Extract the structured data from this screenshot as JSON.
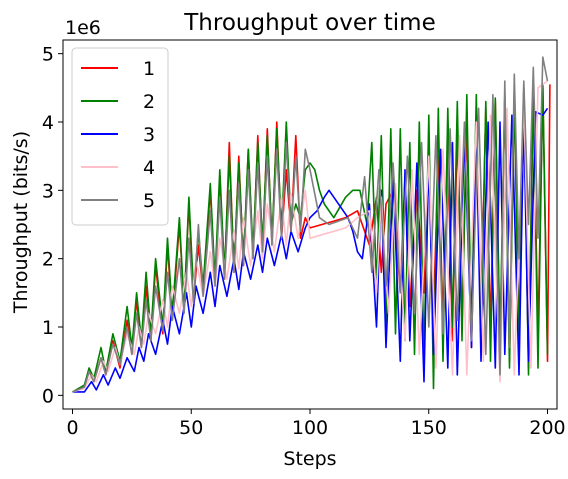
{
  "chart_data": {
    "type": "line",
    "title": "Throughput over time",
    "xlabel": "Steps",
    "ylabel": "Throughput (bits/s)",
    "y_offset_label": "1e6",
    "xlim": [
      -4,
      204
    ],
    "ylim": [
      -0.2,
      5.2
    ],
    "xticks": [
      0,
      50,
      100,
      150,
      200
    ],
    "yticks": [
      0,
      1,
      2,
      3,
      4,
      5
    ],
    "grid": false,
    "legend_position": "upper-left",
    "series": [
      {
        "name": "1",
        "color": "#ff0000",
        "x": [
          0,
          5,
          7,
          9,
          12,
          14,
          17,
          20,
          23,
          25,
          27,
          29,
          31,
          33,
          35,
          38,
          40,
          42,
          45,
          47,
          49,
          51,
          53,
          55,
          58,
          60,
          62,
          64,
          66,
          68,
          70,
          72,
          74,
          76,
          78,
          80,
          82,
          84,
          86,
          88,
          90,
          92,
          94,
          96,
          98,
          100,
          105,
          110,
          115,
          120,
          125,
          128,
          130,
          132,
          135,
          138,
          140,
          142,
          145,
          148,
          150,
          152,
          154,
          156,
          158,
          160,
          162,
          164,
          166,
          168,
          170,
          172,
          174,
          176,
          178,
          180,
          182,
          184,
          186,
          188,
          190,
          192,
          194,
          196,
          198,
          200,
          201
        ],
        "y": [
          0.05,
          0.12,
          0.35,
          0.2,
          0.55,
          0.3,
          0.8,
          0.4,
          1.1,
          0.6,
          1.4,
          0.7,
          1.6,
          0.8,
          1.9,
          0.9,
          2.2,
          1.1,
          2.5,
          1.3,
          2.8,
          1.4,
          2.2,
          1.5,
          3.0,
          1.6,
          3.2,
          1.7,
          3.7,
          1.8,
          3.5,
          1.9,
          3.6,
          2.0,
          3.8,
          2.1,
          3.9,
          2.2,
          4.0,
          2.3,
          3.3,
          2.4,
          3.8,
          2.3,
          2.6,
          2.45,
          2.5,
          2.55,
          2.6,
          2.7,
          2.2,
          2.9,
          1.8,
          2.8,
          3.0,
          1.5,
          3.2,
          1.3,
          3.0,
          1.5,
          3.4,
          1.2,
          3.5,
          1.1,
          3.6,
          0.8,
          3.9,
          1.0,
          4.0,
          0.7,
          4.1,
          1.2,
          4.2,
          0.9,
          4.3,
          0.6,
          4.35,
          0.5,
          4.4,
          0.8,
          4.45,
          0.4,
          4.4,
          0.9,
          4.5,
          0.5,
          4.55
        ]
      },
      {
        "name": "2",
        "color": "#008000",
        "x": [
          0,
          5,
          7,
          9,
          12,
          14,
          17,
          20,
          23,
          25,
          27,
          29,
          31,
          33,
          35,
          38,
          40,
          42,
          45,
          47,
          49,
          51,
          53,
          55,
          58,
          60,
          62,
          64,
          66,
          68,
          70,
          72,
          74,
          76,
          78,
          80,
          82,
          84,
          86,
          88,
          90,
          92,
          94,
          96,
          98,
          100,
          102,
          104,
          106,
          110,
          115,
          118,
          121,
          124,
          126,
          128,
          130,
          132,
          134,
          136,
          138,
          140,
          142,
          144,
          146,
          148,
          150,
          152,
          154,
          156,
          158,
          160,
          162,
          164,
          166,
          168,
          170,
          172,
          174,
          176,
          178,
          180,
          182,
          184,
          186,
          188,
          190,
          192,
          194,
          196,
          198,
          200
        ],
        "y": [
          0.05,
          0.15,
          0.4,
          0.25,
          0.7,
          0.35,
          0.9,
          0.5,
          1.3,
          0.7,
          1.5,
          0.8,
          1.8,
          0.9,
          2.0,
          1.0,
          2.3,
          1.2,
          2.6,
          1.3,
          2.9,
          1.5,
          2.4,
          1.6,
          3.1,
          1.7,
          3.3,
          1.8,
          3.5,
          1.9,
          3.4,
          2.0,
          3.6,
          2.1,
          3.7,
          2.2,
          3.8,
          2.3,
          3.9,
          2.4,
          4.0,
          2.5,
          2.8,
          2.6,
          3.3,
          3.4,
          3.3,
          3.0,
          2.8,
          2.6,
          2.9,
          3.0,
          3.0,
          2.5,
          3.7,
          1.6,
          3.8,
          1.0,
          3.9,
          0.9,
          3.9,
          0.8,
          3.7,
          0.6,
          4.0,
          0.5,
          4.1,
          0.1,
          4.2,
          0.5,
          4.2,
          1.0,
          4.3,
          0.8,
          4.4,
          0.9,
          4.4,
          0.7,
          4.3,
          0.5,
          4.35,
          0.8,
          4.4,
          0.4,
          4.45,
          0.6,
          4.5,
          0.3,
          4.5,
          0.4,
          4.55,
          0.6
        ]
      },
      {
        "name": "3",
        "color": "#0000ff",
        "x": [
          0,
          5,
          8,
          10,
          13,
          15,
          18,
          20,
          23,
          26,
          28,
          30,
          32,
          35,
          38,
          40,
          42,
          45,
          48,
          50,
          52,
          55,
          58,
          60,
          62,
          65,
          68,
          70,
          72,
          75,
          78,
          80,
          82,
          85,
          88,
          90,
          92,
          95,
          98,
          100,
          103,
          106,
          108,
          110,
          113,
          116,
          118,
          120,
          122,
          125,
          128,
          130,
          132,
          135,
          138,
          140,
          142,
          145,
          148,
          150,
          152,
          155,
          158,
          160,
          162,
          165,
          168,
          170,
          172,
          175,
          178,
          180,
          182,
          185,
          188,
          190,
          192,
          195,
          198,
          200
        ],
        "y": [
          0.05,
          0.05,
          0.2,
          0.08,
          0.3,
          0.15,
          0.4,
          0.25,
          0.55,
          0.35,
          0.7,
          0.5,
          0.9,
          0.6,
          1.1,
          0.75,
          1.3,
          0.9,
          1.5,
          1.0,
          1.6,
          1.2,
          1.8,
          1.3,
          1.9,
          1.45,
          2.0,
          1.55,
          2.1,
          1.7,
          2.2,
          1.8,
          2.3,
          1.9,
          2.35,
          2.0,
          2.4,
          2.1,
          2.45,
          2.6,
          2.7,
          2.9,
          3.0,
          2.9,
          2.75,
          2.6,
          2.4,
          2.1,
          2.0,
          2.8,
          1.0,
          3.0,
          0.7,
          3.2,
          0.5,
          3.3,
          0.8,
          3.4,
          0.2,
          3.5,
          0.6,
          3.6,
          0.4,
          3.7,
          0.3,
          3.8,
          0.7,
          3.9,
          0.5,
          4.0,
          0.4,
          4.0,
          0.6,
          4.1,
          0.3,
          4.1,
          0.5,
          4.15,
          4.1,
          4.2
        ]
      },
      {
        "name": "4",
        "color": "#ffc0cb",
        "x": [
          0,
          5,
          8,
          10,
          13,
          15,
          18,
          20,
          23,
          26,
          28,
          30,
          32,
          35,
          38,
          40,
          42,
          45,
          48,
          50,
          52,
          55,
          58,
          60,
          62,
          65,
          68,
          70,
          72,
          75,
          78,
          80,
          82,
          85,
          88,
          90,
          92,
          95,
          98,
          100,
          105,
          110,
          115,
          120,
          125,
          128,
          130,
          133,
          136,
          140,
          143,
          146,
          150,
          153,
          156,
          160,
          163,
          166,
          170,
          173,
          176,
          180,
          183,
          186,
          190,
          193,
          196,
          200
        ],
        "y": [
          0.05,
          0.1,
          0.3,
          0.2,
          0.5,
          0.35,
          0.7,
          0.45,
          0.9,
          0.6,
          1.0,
          0.75,
          1.2,
          0.9,
          1.4,
          1.0,
          1.6,
          1.2,
          1.8,
          1.3,
          2.0,
          1.45,
          2.1,
          1.6,
          2.3,
          1.7,
          2.4,
          1.85,
          2.6,
          1.9,
          2.7,
          2.0,
          2.8,
          2.1,
          2.9,
          2.2,
          2.95,
          2.3,
          3.0,
          2.3,
          2.35,
          2.4,
          2.45,
          2.6,
          2.7,
          1.5,
          2.9,
          1.2,
          3.1,
          0.8,
          3.3,
          0.6,
          3.5,
          0.4,
          3.6,
          0.3,
          3.8,
          0.3,
          4.0,
          0.5,
          4.1,
          0.2,
          4.2,
          0.3,
          4.3,
          0.4,
          4.5,
          4.6
        ]
      },
      {
        "name": "5",
        "color": "#808080",
        "x": [
          0,
          5,
          7,
          9,
          12,
          14,
          17,
          20,
          23,
          25,
          27,
          29,
          31,
          33,
          35,
          38,
          40,
          42,
          45,
          47,
          49,
          51,
          53,
          55,
          58,
          60,
          62,
          64,
          66,
          68,
          70,
          72,
          74,
          76,
          78,
          80,
          82,
          84,
          86,
          88,
          90,
          92,
          94,
          96,
          98,
          100,
          104,
          108,
          112,
          116,
          120,
          123,
          126,
          129,
          132,
          135,
          138,
          141,
          144,
          147,
          150,
          153,
          156,
          159,
          162,
          165,
          168,
          171,
          174,
          177,
          180,
          182,
          184,
          186,
          188,
          190,
          192,
          194,
          196,
          198,
          200
        ],
        "y": [
          0.05,
          0.12,
          0.35,
          0.2,
          0.55,
          0.3,
          0.75,
          0.45,
          1.0,
          0.6,
          1.2,
          0.7,
          1.4,
          0.8,
          1.6,
          0.95,
          1.8,
          1.1,
          2.0,
          1.2,
          2.3,
          1.35,
          2.5,
          1.45,
          2.7,
          1.6,
          2.9,
          1.7,
          3.0,
          1.8,
          3.1,
          1.9,
          3.3,
          2.0,
          3.4,
          2.1,
          3.5,
          2.2,
          3.6,
          2.3,
          3.7,
          2.4,
          3.5,
          2.4,
          3.6,
          3.3,
          2.6,
          2.5,
          2.55,
          2.6,
          2.3,
          3.2,
          1.8,
          3.3,
          1.6,
          3.4,
          1.5,
          3.5,
          1.2,
          3.7,
          1.0,
          3.8,
          0.9,
          3.9,
          1.1,
          4.0,
          0.8,
          4.2,
          0.6,
          4.4,
          0.3,
          4.6,
          0.7,
          4.7,
          2.0,
          4.6,
          2.5,
          4.8,
          2.3,
          4.95,
          4.6
        ]
      }
    ]
  }
}
